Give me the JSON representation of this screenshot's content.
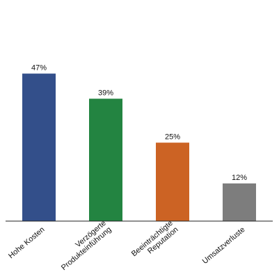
{
  "chart_data": {
    "type": "bar",
    "categories": [
      "Hohe Kosten",
      "Verzögerte\nProdukteinführung",
      "Beeinträchtigte\nReputation",
      "Umsatzverluste"
    ],
    "values": [
      47,
      39,
      25,
      12
    ],
    "value_labels": [
      "47%",
      "39%",
      "25%",
      "12%"
    ],
    "colors": [
      "#334f8a",
      "#238441",
      "#cc6324",
      "#7d7d7d"
    ],
    "ylim": [
      0,
      100
    ],
    "grid": false,
    "y_axis_visible": false,
    "title": "",
    "xlabel": "",
    "ylabel": ""
  }
}
